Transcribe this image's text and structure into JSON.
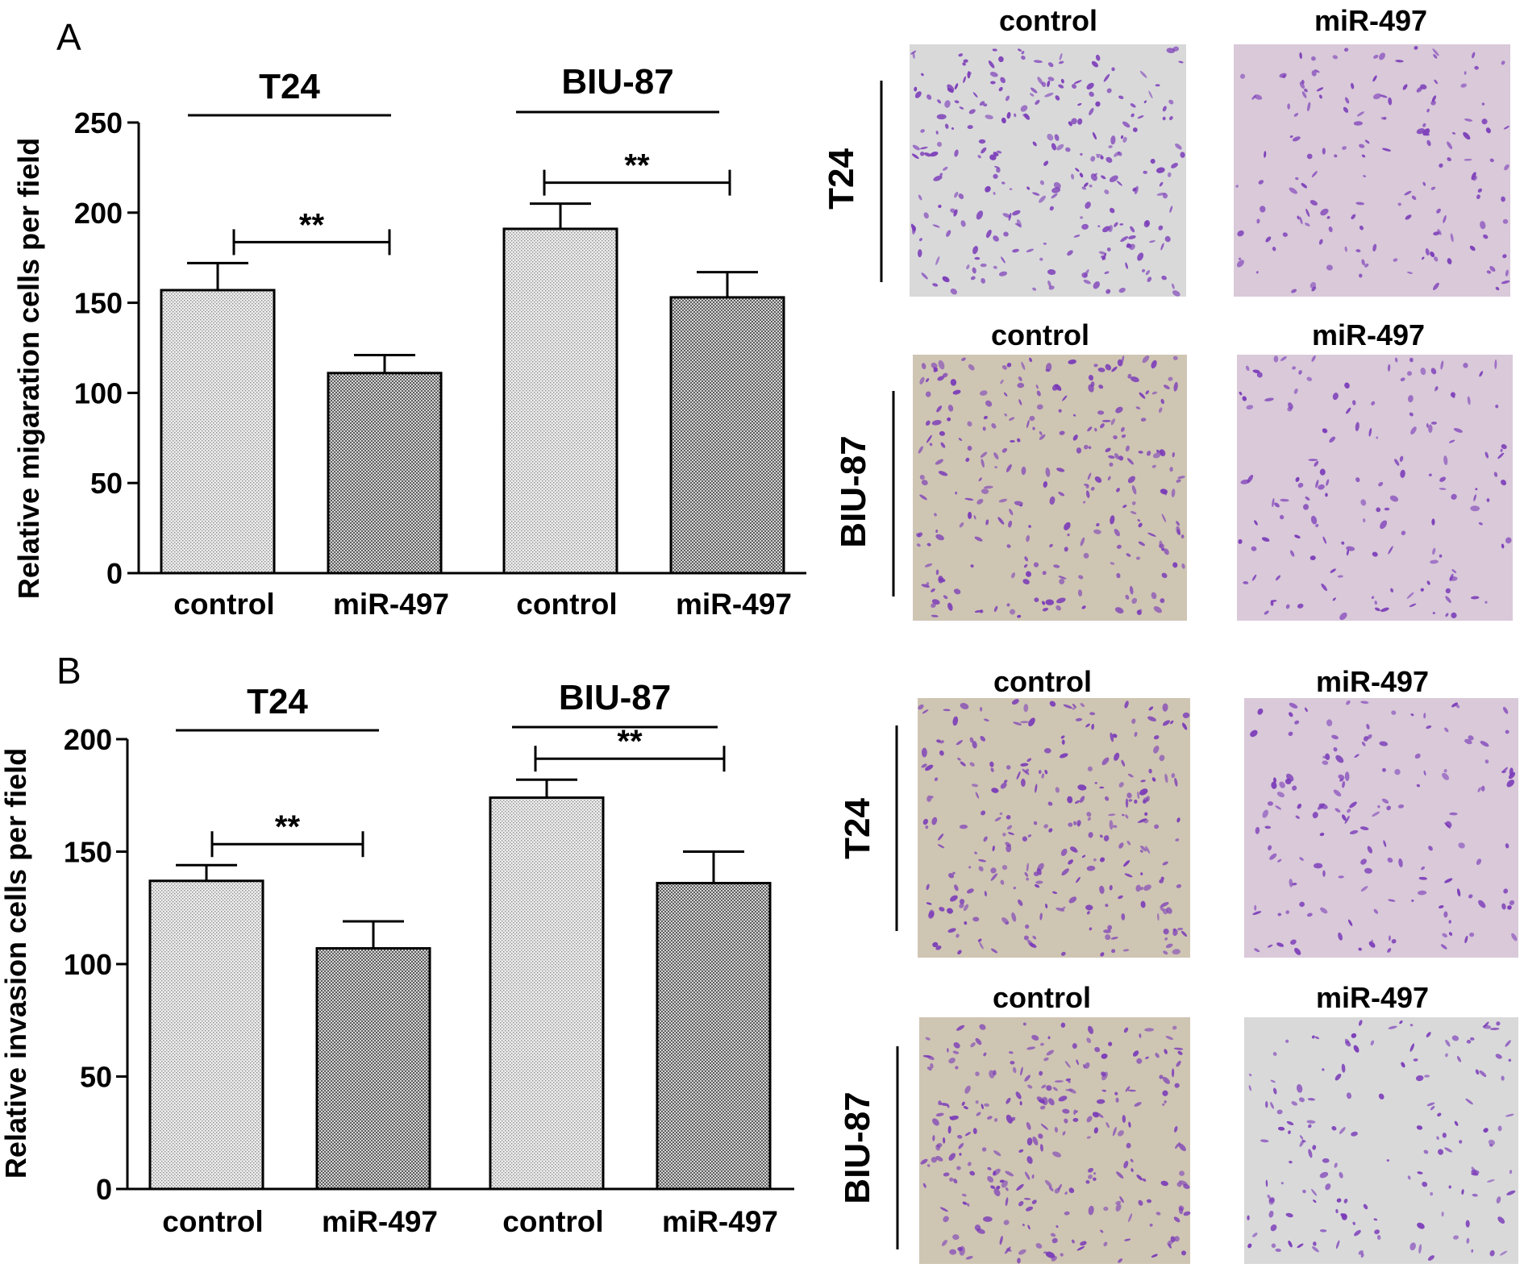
{
  "colors": {
    "control_bar": "#e2e2e2",
    "mir_bar": "#7b7b7b",
    "stain": "#7a3ab8",
    "bg_pink": "#d9c9d9",
    "bg_tan": "#cfc5b3",
    "bg_grey": "#d9d9da"
  },
  "chart_data": [
    {
      "panel": "A",
      "type": "bar",
      "ylabel": "Relative migaration cells per field",
      "ylim": [
        0,
        250
      ],
      "yticks": [
        "0",
        "50",
        "100",
        "150",
        "200",
        "250"
      ],
      "categories": [
        "control",
        "miR-497",
        "control",
        "miR-497"
      ],
      "groups": [
        {
          "label": "T24",
          "values": [
            157,
            111
          ],
          "errors": [
            15,
            10
          ],
          "significance": "**"
        },
        {
          "label": "BIU-87",
          "values": [
            191,
            153
          ],
          "errors": [
            14,
            14
          ],
          "significance": "**"
        }
      ]
    },
    {
      "panel": "B",
      "type": "bar",
      "ylabel": "Relative invasion cells per field",
      "ylim": [
        0,
        200
      ],
      "yticks": [
        "0",
        "50",
        "100",
        "150",
        "200"
      ],
      "categories": [
        "control",
        "miR-497",
        "control",
        "miR-497"
      ],
      "groups": [
        {
          "label": "T24",
          "values": [
            137,
            107
          ],
          "errors": [
            7,
            12
          ],
          "significance": "**"
        },
        {
          "label": "BIU-87",
          "values": [
            174,
            136
          ],
          "errors": [
            8,
            14
          ],
          "significance": "**"
        }
      ]
    }
  ],
  "micrographs": {
    "columns": [
      "control",
      "miR-497"
    ],
    "panels": [
      {
        "row_label": "T24",
        "titles": [
          "control",
          "miR-497"
        ]
      },
      {
        "row_label": "BIU-87",
        "titles": [
          "control",
          "miR-497"
        ]
      },
      {
        "row_label": "T24",
        "titles": [
          "control",
          "miR-497"
        ]
      },
      {
        "row_label": "BIU-87",
        "titles": [
          "control",
          "miR-497"
        ]
      }
    ]
  }
}
